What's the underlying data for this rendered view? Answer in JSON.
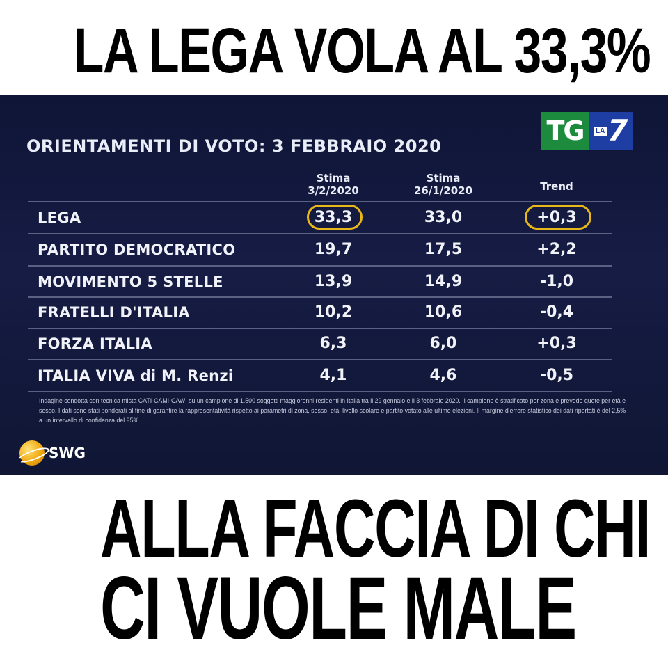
{
  "headline_top": "LA LEGA VOLA AL 33,3%",
  "headline_bottom_1": "ALLA FACCIA DI CHI",
  "headline_bottom_2": "CI VUOLE MALE",
  "panel": {
    "title": "ORIENTAMENTI DI VOTO: 3 FEBBRAIO 2020",
    "logo": {
      "tg": "TG",
      "la": "LA",
      "seven": "7"
    },
    "columns": {
      "col1_label": "Stima",
      "col1_date": "3/2/2020",
      "col2_label": "Stima",
      "col2_date": "26/1/2020",
      "trend": "Trend"
    },
    "rows": [
      {
        "party": "LEGA",
        "v1": "33,3",
        "v2": "33,0",
        "trend": "+0,3",
        "highlighted": true
      },
      {
        "party": "PARTITO DEMOCRATICO",
        "v1": "19,7",
        "v2": "17,5",
        "trend": "+2,2"
      },
      {
        "party": "MOVIMENTO 5 STELLE",
        "v1": "13,9",
        "v2": "14,9",
        "trend": "-1,0"
      },
      {
        "party": "FRATELLI D'ITALIA",
        "v1": "10,2",
        "v2": "10,6",
        "trend": "-0,4"
      },
      {
        "party": "FORZA ITALIA",
        "v1": "6,3",
        "v2": "6,0",
        "trend": "+0,3"
      },
      {
        "party": "ITALIA VIVA di M. Renzi",
        "v1": "4,1",
        "v2": "4,6",
        "trend": "-0,5"
      }
    ],
    "footnote": "Indagine condotta con tecnica mista CATI-CAMI-CAWI su un campione di 1.500 soggetti maggiorenni residenti in Italia tra il 29 gennaio e il 3 febbraio 2020. Il campione è stratificato per zona e prevede quote per età e sesso. I dati sono stati ponderati al fine di garantire la rappresentatività rispetto ai parametri di zona, sesso, età, livello scolare e partito votato alle ultime elezioni. Il margine d'errore statistico dei dati riportati è del 2,5% a un intervallo di confidenza del 95%.",
    "brand": "SWG"
  },
  "colors": {
    "panel_bg": "#161c44",
    "highlight_circle": "#e8b818",
    "tg_green": "#1d8b3d",
    "la7_blue": "#1e3ea4"
  },
  "icons": [
    "swg-globe-icon",
    "tg-la7-logo"
  ]
}
